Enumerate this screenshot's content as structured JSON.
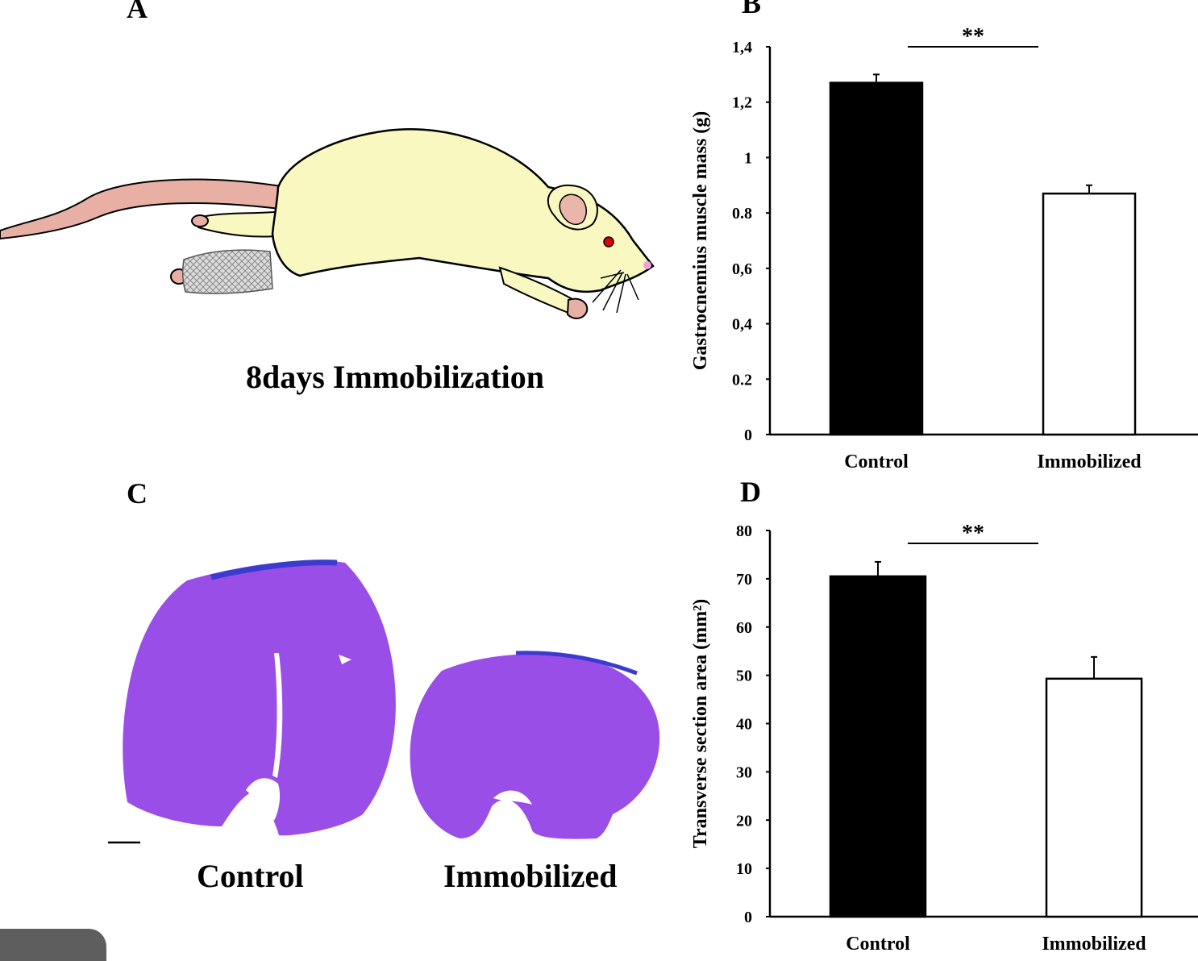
{
  "panels": {
    "a": {
      "letter": "A",
      "caption": "8days Immobilization"
    },
    "b": {
      "letter": "B"
    },
    "c": {
      "letter": "C",
      "labels": [
        "Control",
        "Immobilized"
      ]
    },
    "d": {
      "letter": "D"
    }
  },
  "colors": {
    "rat_body": "#f8f8c0",
    "rat_tail": "#e8b0a4",
    "cast": "#d8d8d8",
    "stain": "#9a4ee8",
    "stain_dark": "#3b3bd0",
    "control_bar": "#000000",
    "immobilized_bar": "#ffffff"
  },
  "chart_data": [
    {
      "type": "bar",
      "panel": "B",
      "categories": [
        "Control",
        "Immobilized"
      ],
      "values": [
        1.27,
        0.87
      ],
      "errors": [
        0.03,
        0.03
      ],
      "bar_colors": [
        "#000000",
        "#ffffff"
      ],
      "ylabel": "Gastrocnemius muscle mass (g)",
      "ylim": [
        0,
        1.4
      ],
      "yticks": [
        0,
        0.2,
        0.4,
        0.6,
        0.8,
        1,
        1.2,
        1.4
      ],
      "ytick_labels": [
        "0",
        "0.2",
        "0,4",
        "0,6",
        "0.8",
        "1",
        "1,2",
        "1,4"
      ],
      "significance": "**",
      "grid": false
    },
    {
      "type": "bar",
      "panel": "D",
      "categories": [
        "Control",
        "Immobilized"
      ],
      "values": [
        70.5,
        49.3
      ],
      "errors": [
        3.0,
        4.5
      ],
      "bar_colors": [
        "#000000",
        "#ffffff"
      ],
      "ylabel": "Transverse section area (mm²)",
      "ylim": [
        0,
        80
      ],
      "yticks": [
        0,
        10,
        20,
        30,
        40,
        50,
        60,
        70,
        80
      ],
      "ytick_labels": [
        "0",
        "10",
        "20",
        "30",
        "40",
        "50",
        "60",
        "70",
        "80"
      ],
      "significance": "**",
      "grid": false
    }
  ]
}
